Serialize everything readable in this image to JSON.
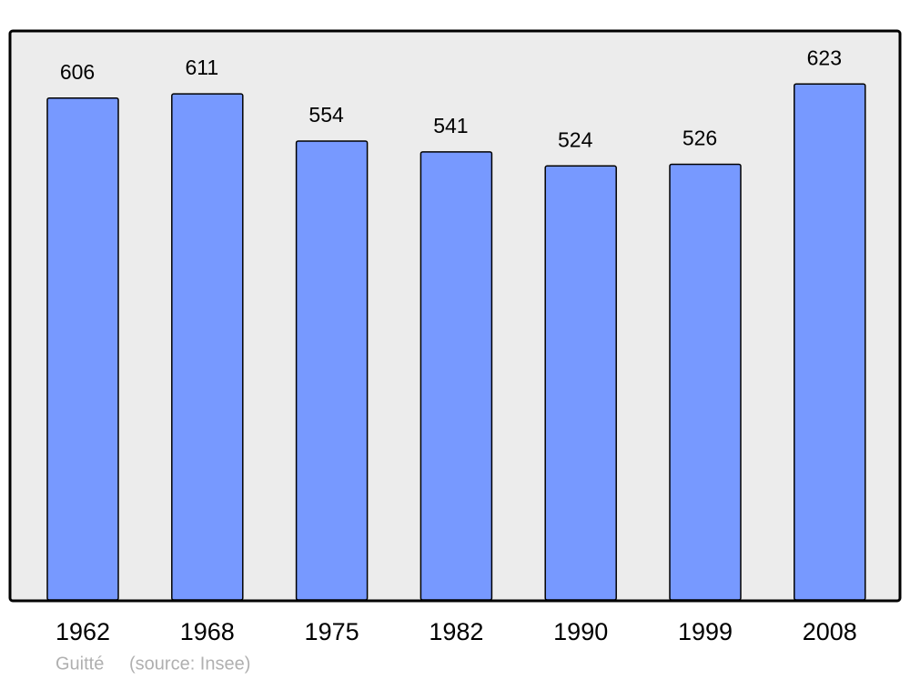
{
  "chart_data": {
    "type": "bar",
    "categories": [
      "1962",
      "1968",
      "1975",
      "1982",
      "1990",
      "1999",
      "2008"
    ],
    "values": [
      606,
      611,
      554,
      541,
      524,
      526,
      623
    ],
    "color": "#7799ff",
    "ylim": [
      0,
      687
    ],
    "credit": "Guitté",
    "source": "(source: Insee)"
  }
}
